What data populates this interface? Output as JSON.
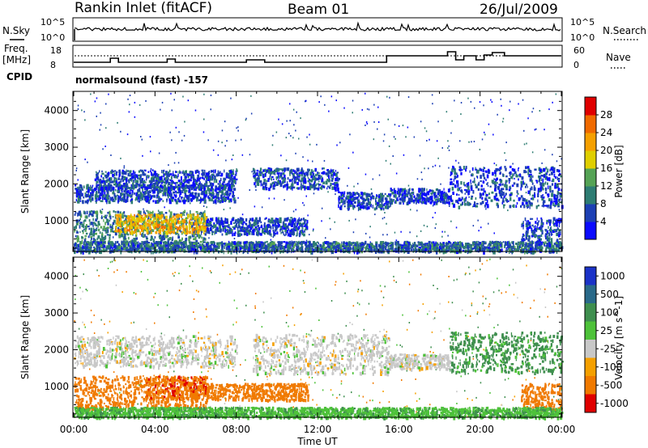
{
  "header": {
    "station": "Rankin Inlet (fitACF)",
    "beam": "Beam 01",
    "date": "26/Jul/2009"
  },
  "strip1": {
    "left_label": "N.Sky",
    "right_label": "N.Search",
    "left_ticks": [
      "10^5",
      "10^0"
    ],
    "right_ticks": [
      "10^5",
      "10^0"
    ]
  },
  "strip2": {
    "left_label_1": "Freq.",
    "left_label_2": "[MHz]",
    "right_label": "Nave",
    "cpid_label": "CPID",
    "left_ticks": [
      "18",
      "8"
    ],
    "right_ticks": [
      "60",
      "0"
    ],
    "cpid_text": "normalsound (fast) -157"
  },
  "colors": {
    "power": [
      "#0b0bff",
      "#1d40b4",
      "#2e7d73",
      "#55a355",
      "#e0cf00",
      "#f5a000",
      "#f06a00",
      "#e00000"
    ],
    "velocity": [
      "#1b33c8",
      "#2a6a8a",
      "#3f8f4f",
      "#4ec23a",
      "#c8c8c8",
      "#f5a000",
      "#f07a00",
      "#e00000"
    ]
  },
  "chart_data": [
    {
      "type": "heatmap",
      "name": "power",
      "ylabel": "Slant Range [km]",
      "xlabel": "",
      "x_range_hours": [
        0,
        24
      ],
      "ylim": [
        180,
        4500
      ],
      "y_ticks": [
        1000,
        2000,
        3000,
        4000
      ],
      "colorbar": {
        "label": "Power [dB]",
        "ticks": [
          "28",
          "24",
          "20",
          "16",
          "12",
          "8",
          "4"
        ],
        "range": [
          0,
          32
        ]
      },
      "bands": [
        {
          "t0": 0.0,
          "t1": 7.9,
          "r0": 1550,
          "r1": 2000,
          "v": 6
        },
        {
          "t0": 1.0,
          "t1": 8.0,
          "r0": 1900,
          "r1": 2400,
          "v": 6
        },
        {
          "t0": 8.8,
          "t1": 13.0,
          "r0": 1900,
          "r1": 2450,
          "v": 6
        },
        {
          "t0": 13.0,
          "t1": 15.5,
          "r0": 1350,
          "r1": 1800,
          "v": 6
        },
        {
          "t0": 15.5,
          "t1": 18.5,
          "r0": 1500,
          "r1": 1900,
          "v": 6
        },
        {
          "t0": 18.5,
          "t1": 24.0,
          "r0": 1400,
          "r1": 2500,
          "v": 6
        },
        {
          "t0": 0.0,
          "t1": 6.5,
          "r0": 400,
          "r1": 1300,
          "v": 10
        },
        {
          "t0": 2.0,
          "t1": 6.5,
          "r0": 700,
          "r1": 1200,
          "v": 20
        },
        {
          "t0": 6.5,
          "t1": 11.5,
          "r0": 650,
          "r1": 1100,
          "v": 6
        },
        {
          "t0": 22.0,
          "t1": 24.0,
          "r0": 400,
          "r1": 1100,
          "v": 6
        },
        {
          "t0": 0.0,
          "t1": 24.0,
          "r0": 180,
          "r1": 450,
          "v": 8
        }
      ]
    },
    {
      "type": "heatmap",
      "name": "velocity",
      "ylabel": "Slant Range [km]",
      "xlabel": "Time UT",
      "x_tick_labels": [
        "00:00",
        "04:00",
        "08:00",
        "12:00",
        "16:00",
        "20:00",
        "00:00"
      ],
      "x_tick_hours": [
        0,
        4,
        8,
        12,
        16,
        20,
        24
      ],
      "ylim": [
        180,
        4500
      ],
      "y_ticks": [
        1000,
        2000,
        3000,
        4000
      ],
      "colorbar": {
        "label": "Velocity [m s^-1]",
        "ticks": [
          "1000",
          "500",
          "100",
          "25",
          "-25",
          "-100",
          "-500",
          "-1000"
        ]
      },
      "bands": [
        {
          "t0": 0.0,
          "t1": 8.0,
          "r0": 1550,
          "r1": 2400,
          "v": 0
        },
        {
          "t0": 8.8,
          "t1": 15.5,
          "r0": 1350,
          "r1": 2450,
          "v": 0
        },
        {
          "t0": 15.5,
          "t1": 18.5,
          "r0": 1500,
          "r1": 1900,
          "v": 0
        },
        {
          "t0": 18.5,
          "t1": 24.0,
          "r0": 1400,
          "r1": 2500,
          "v": 150
        },
        {
          "t0": 0.0,
          "t1": 6.5,
          "r0": 400,
          "r1": 1300,
          "v": -300
        },
        {
          "t0": 3.5,
          "t1": 6.5,
          "r0": 700,
          "r1": 1300,
          "v": -400
        },
        {
          "t0": 6.5,
          "t1": 11.5,
          "r0": 650,
          "r1": 1100,
          "v": -200
        },
        {
          "t0": 22.0,
          "t1": 24.0,
          "r0": 400,
          "r1": 1100,
          "v": -300
        },
        {
          "t0": 0.0,
          "t1": 24.0,
          "r0": 180,
          "r1": 450,
          "v": 80
        }
      ]
    }
  ]
}
